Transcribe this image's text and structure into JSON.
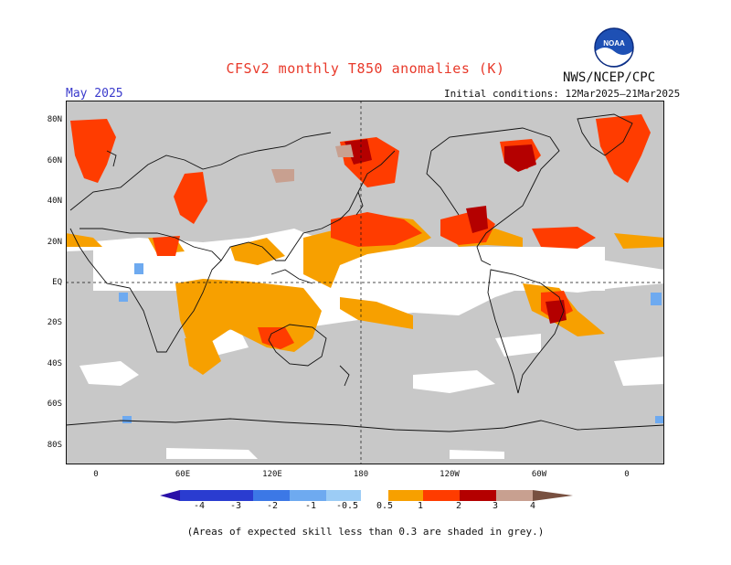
{
  "header": {
    "title": "CFSv2 monthly T850 anomalies (K)",
    "agency": "NWS/NCEP/CPC",
    "month": "May 2025",
    "initial_conditions": "Initial conditions: 12Mar2025–21Mar2025",
    "logo_text": "NOAA"
  },
  "axes": {
    "lat_labels": [
      "80N",
      "60N",
      "40N",
      "20N",
      "EQ",
      "20S",
      "40S",
      "60S",
      "80S"
    ],
    "lon_labels": [
      "0",
      "60E",
      "120E",
      "180",
      "120W",
      "60W",
      "0"
    ]
  },
  "colorbar": {
    "labels": [
      "-4",
      "-3",
      "-2",
      "-1",
      "-0.5",
      "0.5",
      "1",
      "2",
      "3",
      "4"
    ],
    "colors": [
      "#2a10a8",
      "#2a3cd0",
      "#3c78e6",
      "#6eaaf0",
      "#9cccf5",
      "#ffffff",
      "#f7a000",
      "#ff3c00",
      "#b40000",
      "#c8a090",
      "#785040"
    ],
    "grey": "#c8c8c8"
  },
  "footer": {
    "note": "(Areas of expected skill less than 0.3 are shaded in grey.)"
  }
}
